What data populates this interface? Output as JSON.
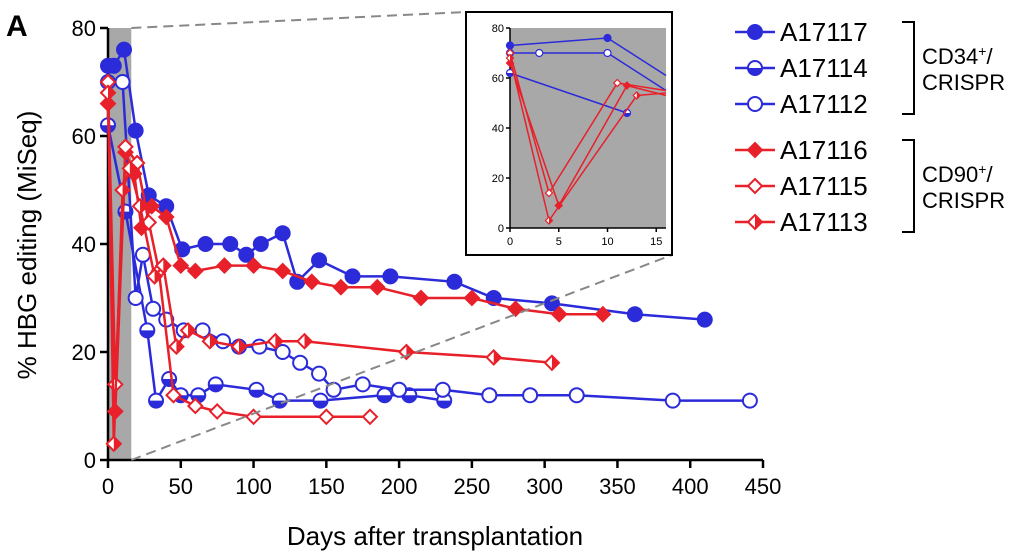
{
  "panel_label": "A",
  "colors": {
    "blue": "#2b2bd9",
    "red": "#e8202a",
    "shade": "#a8a8a8"
  },
  "chart_data": [
    {
      "type": "line",
      "name": "main",
      "xlabel": "Days after transplantation",
      "ylabel": "% HBG editing (MiSeq)",
      "xlim": [
        0,
        450
      ],
      "ylim": [
        0,
        80
      ],
      "xticks": [
        0,
        50,
        100,
        150,
        200,
        250,
        300,
        350,
        400,
        450
      ],
      "yticks": [
        0,
        20,
        40,
        60,
        80
      ],
      "shaded_x_range": [
        0,
        16
      ],
      "series": [
        {
          "name": "A17117",
          "color": "#2b2bd9",
          "marker": "filled-circle",
          "x": [
            0,
            4,
            11,
            19,
            28,
            40,
            51,
            67,
            84,
            95,
            105,
            120,
            130,
            145,
            168,
            194,
            238,
            265,
            305,
            362,
            410
          ],
          "y": [
            73,
            73,
            76,
            61,
            49,
            47,
            39,
            40,
            40,
            38,
            40,
            42,
            33,
            37,
            34,
            34,
            33,
            30,
            29,
            27,
            26
          ]
        },
        {
          "name": "A17114",
          "color": "#2b2bd9",
          "marker": "half-circle",
          "x": [
            0,
            12,
            27,
            33,
            42,
            50,
            62,
            74,
            102,
            118,
            146,
            190,
            207,
            231
          ],
          "y": [
            62,
            46,
            24,
            11,
            15,
            12,
            12,
            14,
            13,
            11,
            11,
            12,
            12,
            11
          ]
        },
        {
          "name": "A17112",
          "color": "#2b2bd9",
          "marker": "open-circle",
          "x": [
            0,
            10,
            19,
            24,
            31,
            40,
            52,
            65,
            79,
            90,
            104,
            120,
            132,
            145,
            155,
            175,
            200,
            230,
            262,
            290,
            322,
            388,
            441
          ],
          "y": [
            70,
            70,
            30,
            38,
            28,
            26,
            24,
            24,
            22,
            21,
            21,
            20,
            18,
            16,
            13,
            14,
            13,
            13,
            12,
            12,
            12,
            11,
            11
          ]
        },
        {
          "name": "A17116",
          "color": "#e8202a",
          "marker": "filled-diamond",
          "x": [
            0,
            5,
            12,
            18,
            23,
            30,
            40,
            50,
            60,
            80,
            100,
            120,
            140,
            160,
            185,
            215,
            250,
            280,
            310,
            340
          ],
          "y": [
            66,
            9,
            57,
            53,
            43,
            47,
            45,
            36,
            35,
            36,
            36,
            35,
            33,
            32,
            32,
            30,
            30,
            28,
            27,
            27
          ]
        },
        {
          "name": "A17115",
          "color": "#e8202a",
          "marker": "open-diamond",
          "x": [
            0,
            5,
            12,
            20,
            28,
            35,
            45,
            60,
            75,
            100,
            150,
            180
          ],
          "y": [
            70,
            14,
            58,
            55,
            44,
            35,
            12,
            10,
            9,
            8,
            8,
            8
          ]
        },
        {
          "name": "A17113",
          "color": "#e8202a",
          "marker": "half-diamond",
          "x": [
            0,
            4,
            10,
            15,
            22,
            32,
            38,
            47,
            55,
            70,
            90,
            115,
            135,
            205,
            265,
            305
          ],
          "y": [
            68,
            3,
            50,
            54,
            47,
            34,
            36,
            21,
            24,
            22,
            21,
            22,
            22,
            20,
            19,
            18
          ]
        }
      ]
    },
    {
      "type": "line",
      "name": "inset",
      "xlim": [
        0,
        16
      ],
      "ylim": [
        0,
        80
      ],
      "xticks": [
        0,
        5,
        10,
        15
      ],
      "yticks": [
        0,
        20,
        40,
        60,
        80
      ],
      "series": [
        {
          "name": "A17117",
          "x": [
            0,
            10,
            16
          ],
          "y": [
            73,
            76,
            61
          ]
        },
        {
          "name": "A17114",
          "x": [
            0,
            12
          ],
          "y": [
            62,
            46
          ]
        },
        {
          "name": "A17112",
          "x": [
            0,
            3,
            10,
            16
          ],
          "y": [
            70,
            70,
            70,
            55
          ]
        },
        {
          "name": "A17116",
          "x": [
            0,
            5,
            12,
            16
          ],
          "y": [
            66,
            9,
            57,
            53
          ]
        },
        {
          "name": "A17115",
          "x": [
            0,
            4,
            11,
            16
          ],
          "y": [
            70,
            14,
            58,
            55
          ]
        },
        {
          "name": "A17113",
          "x": [
            0,
            4,
            13,
            16
          ],
          "y": [
            68,
            3,
            53,
            54
          ]
        }
      ]
    }
  ],
  "legend": {
    "groups": [
      {
        "label_main": "CD34",
        "label_sup": "+",
        "label_tail": "/",
        "label_line2": "CRISPR",
        "items": [
          "A17117",
          "A17114",
          "A17112"
        ]
      },
      {
        "label_main": "CD90",
        "label_sup": "+",
        "label_tail": "/",
        "label_line2": "CRISPR",
        "items": [
          "A17116",
          "A17115",
          "A17113"
        ]
      }
    ]
  }
}
